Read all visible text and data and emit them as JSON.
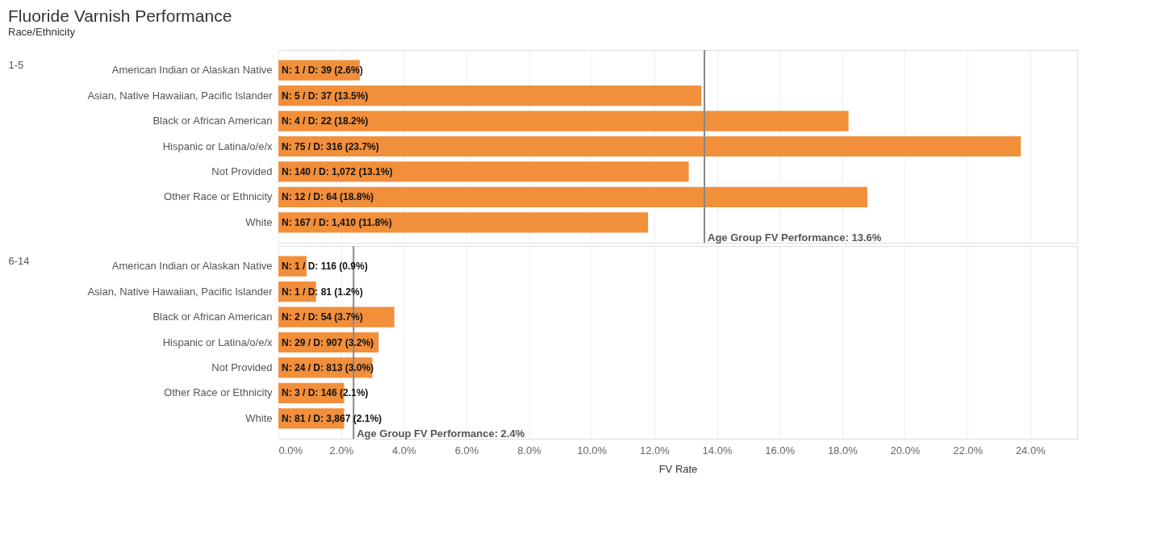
{
  "chart_data": [
    {
      "type": "bar",
      "orientation": "horizontal",
      "title": "Fluoride Varnish Performance",
      "subtitle": "Race/Ethnicity",
      "ylabel": "1-5",
      "categories": [
        "American Indian or Alaskan Native",
        "Asian, Native Hawaiian, Pacific Islander",
        "Black or African American",
        "Hispanic or Latina/o/e/x",
        "Not Provided",
        "Other Race or Ethnicity",
        "White"
      ],
      "values": [
        2.6,
        13.5,
        18.2,
        23.7,
        13.1,
        18.8,
        11.8
      ],
      "value_labels": [
        "N: 1 / D: 39 (2.6%)",
        "N: 5 / D: 37 (13.5%)",
        "N: 4 / D: 22 (18.2%)",
        "N: 75 / D: 316 (23.7%)",
        "N: 140 / D: 1,072 (13.1%)",
        "N: 12 / D: 64 (18.8%)",
        "N: 167 / D: 1,410 (11.8%)"
      ],
      "color": "#f28f3b",
      "xlim": [
        0,
        25.5
      ],
      "xticks": [
        {
          "value": 0,
          "label": null
        },
        {
          "value": 2,
          "label": null
        },
        {
          "value": 4,
          "label": null
        },
        {
          "value": 6,
          "label": null
        },
        {
          "value": 8,
          "label": null
        },
        {
          "value": 10,
          "label": null
        },
        {
          "value": 12,
          "label": null
        },
        {
          "value": 14,
          "label": null
        },
        {
          "value": 16,
          "label": null
        },
        {
          "value": 18,
          "label": null
        },
        {
          "value": 20,
          "label": null
        },
        {
          "value": 22,
          "label": null
        },
        {
          "value": 24,
          "label": null
        }
      ],
      "grid": "x",
      "tick_labels": "y",
      "ref_lines": [
        {
          "axis": "x",
          "value": 13.6,
          "label": "Age Group FV Performance: 13.6%",
          "color": "#888888"
        }
      ]
    },
    {
      "type": "bar",
      "orientation": "horizontal",
      "ylabel": "6-14",
      "xlabel": "FV Rate",
      "categories": [
        "American Indian or Alaskan Native",
        "Asian, Native Hawaiian, Pacific Islander",
        "Black or African American",
        "Hispanic or Latina/o/e/x",
        "Not Provided",
        "Other Race or Ethnicity",
        "White"
      ],
      "values": [
        0.9,
        1.2,
        3.7,
        3.2,
        3.0,
        2.1,
        2.1
      ],
      "value_labels": [
        "N: 1 / D: 116 (0.9%)",
        "N: 1 / D: 81 (1.2%)",
        "N: 2 / D: 54 (3.7%)",
        "N: 29 / D: 907 (3.2%)",
        "N: 24 / D: 813 (3.0%)",
        "N: 3 / D: 146 (2.1%)",
        "N: 81 / D: 3,867 (2.1%)"
      ],
      "color": "#f28f3b",
      "xlim": [
        0,
        25.5
      ],
      "xticks": [
        {
          "value": 0,
          "label": "0.0%"
        },
        {
          "value": 2,
          "label": "2.0%"
        },
        {
          "value": 4,
          "label": "4.0%"
        },
        {
          "value": 6,
          "label": "6.0%"
        },
        {
          "value": 8,
          "label": "8.0%"
        },
        {
          "value": 10,
          "label": "10.0%"
        },
        {
          "value": 12,
          "label": "12.0%"
        },
        {
          "value": 14,
          "label": "14.0%"
        },
        {
          "value": 16,
          "label": "16.0%"
        },
        {
          "value": 18,
          "label": "18.0%"
        },
        {
          "value": 20,
          "label": "20.0%"
        },
        {
          "value": 22,
          "label": "22.0%"
        },
        {
          "value": 24,
          "label": "24.0%"
        }
      ],
      "grid": "x",
      "ref_lines": [
        {
          "axis": "x",
          "value": 2.4,
          "label": "Age Group FV Performance: 2.4%",
          "color": "#888888"
        }
      ]
    }
  ]
}
